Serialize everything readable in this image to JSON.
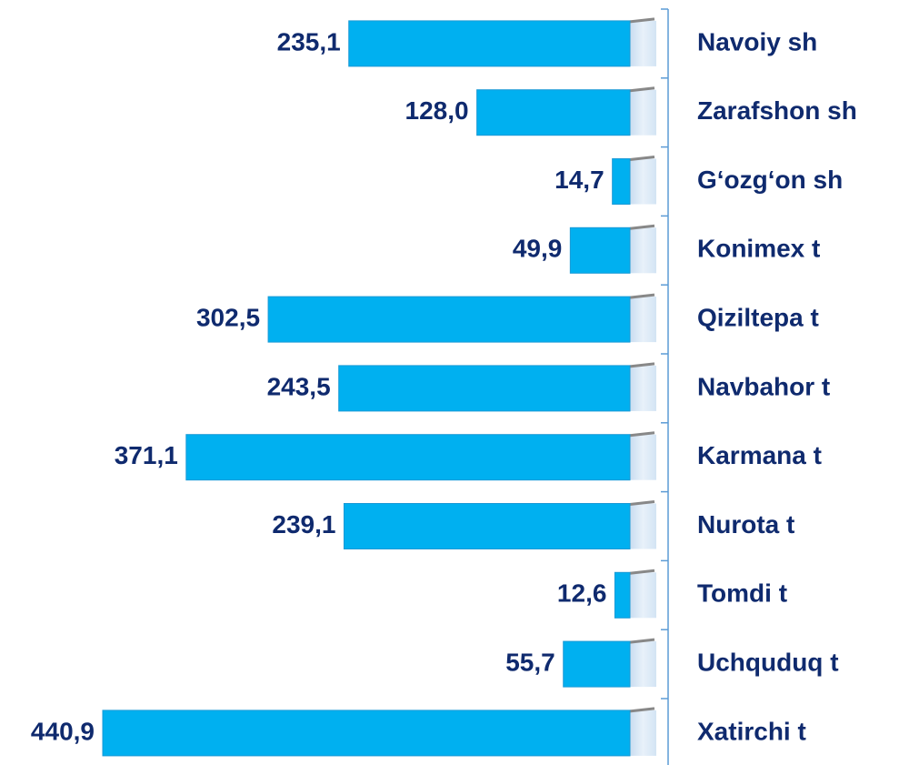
{
  "chart_data": {
    "type": "bar",
    "orientation": "horizontal",
    "categories": [
      "Navoiy sh",
      "Zarafshon sh",
      "G‘ozg‘on sh",
      "Konimex t",
      "Qiziltepa t",
      "Navbahor t",
      "Karmana t",
      "Nurota t",
      "Tomdi t",
      "Uchquduq t",
      "Xatirchi t"
    ],
    "values": [
      235.1,
      128.0,
      14.7,
      49.9,
      302.5,
      243.5,
      371.1,
      239.1,
      12.6,
      55.7,
      440.9
    ],
    "value_labels": [
      "235,1",
      "128,0",
      "14,7",
      "49,9",
      "302,5",
      "243,5",
      "371,1",
      "239,1",
      "12,6",
      "55,7",
      "440,9"
    ],
    "color": "#00b0f0"
  }
}
